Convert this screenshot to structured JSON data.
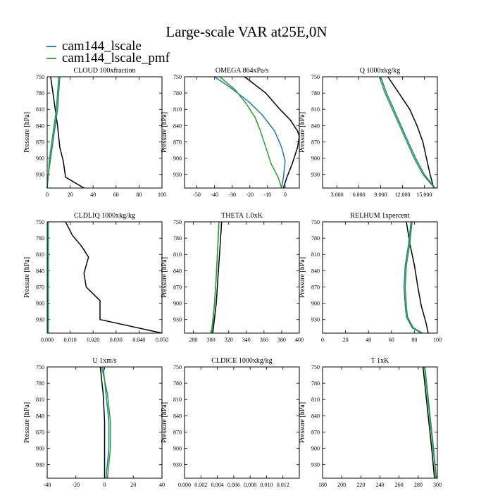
{
  "title": "Large-scale VAR at25E,0N",
  "legend": [
    {
      "name": "cam144_lscale",
      "color": "#1f77b4"
    },
    {
      "name": "cam144_lscale_pmf",
      "color": "#2ca02c"
    }
  ],
  "obs_color": "#000000",
  "ylabel": "Pressure [hPa]",
  "y_ticks": [
    "750",
    "780",
    "810",
    "840",
    "870",
    "900",
    "930"
  ],
  "chart_data": [
    {
      "type": "line",
      "title": "CLOUD  100xfraction",
      "ylabel": "Pressure [hPa]",
      "xlim": [
        0,
        100
      ],
      "ylim": [
        955,
        750
      ],
      "x_ticks": [
        {
          "v": 0,
          "t": "0"
        },
        {
          "v": 20,
          "t": "20"
        },
        {
          "v": 40,
          "t": "40"
        },
        {
          "v": 60,
          "t": "60"
        },
        {
          "v": 80,
          "t": "80"
        },
        {
          "v": 100,
          "t": "100"
        }
      ],
      "series": [
        {
          "name": "obs",
          "points": [
            [
              3,
              750
            ],
            [
              5,
              780
            ],
            [
              7,
              810
            ],
            [
              9,
              840
            ],
            [
              10,
              860
            ],
            [
              11,
              880
            ],
            [
              14,
              905
            ],
            [
              16,
              935
            ],
            [
              32,
              955
            ]
          ]
        },
        {
          "name": "cam144_lscale",
          "points": [
            [
              11,
              750
            ],
            [
              10,
              780
            ],
            [
              9,
              810
            ],
            [
              7,
              840
            ],
            [
              5,
              870
            ],
            [
              3,
              900
            ],
            [
              1,
              930
            ],
            [
              0,
              955
            ]
          ]
        },
        {
          "name": "cam144_lscale_pmf",
          "points": [
            [
              10,
              750
            ],
            [
              9,
              780
            ],
            [
              8,
              810
            ],
            [
              6,
              840
            ],
            [
              4,
              870
            ],
            [
              2,
              900
            ],
            [
              1,
              930
            ],
            [
              0,
              955
            ]
          ]
        }
      ]
    },
    {
      "type": "line",
      "title": "OMEGA  864xPa/s",
      "ylabel": "Pressure [hPa]",
      "xlim": [
        -57,
        8
      ],
      "ylim": [
        955,
        750
      ],
      "x_ticks": [
        {
          "v": -50,
          "t": "-50"
        },
        {
          "v": -40,
          "t": "-40"
        },
        {
          "v": -30,
          "t": "-30"
        },
        {
          "v": -20,
          "t": "-20"
        },
        {
          "v": -10,
          "t": "-10"
        },
        {
          "v": 0,
          "t": "0"
        }
      ],
      "series": [
        {
          "name": "obs",
          "points": [
            [
              -23,
              750
            ],
            [
              -11,
              780
            ],
            [
              -3,
              810
            ],
            [
              3,
              830
            ],
            [
              7,
              850
            ],
            [
              8,
              860
            ],
            [
              7,
              880
            ],
            [
              4,
              910
            ],
            [
              1,
              935
            ],
            [
              -1,
              955
            ]
          ]
        },
        {
          "name": "cam144_lscale",
          "points": [
            [
              -40,
              750
            ],
            [
              -31,
              770
            ],
            [
              -21,
              795
            ],
            [
              -13,
              820
            ],
            [
              -6,
              850
            ],
            [
              -2,
              880
            ],
            [
              0,
              905
            ],
            [
              -1,
              935
            ],
            [
              -2,
              955
            ]
          ]
        },
        {
          "name": "cam144_lscale_pmf",
          "points": [
            [
              -37,
              750
            ],
            [
              -28,
              775
            ],
            [
              -22,
              800
            ],
            [
              -17,
              825
            ],
            [
              -14,
              850
            ],
            [
              -11,
              880
            ],
            [
              -8,
              910
            ],
            [
              -4,
              935
            ],
            [
              -2,
              955
            ]
          ]
        }
      ]
    },
    {
      "type": "line",
      "title": "Q  1000xkg/kg",
      "ylabel": "Pressure [hPa]",
      "xlim": [
        1,
        16.8
      ],
      "ylim": [
        955,
        750
      ],
      "x_ticks": [
        {
          "v": 3,
          "t": "3.000"
        },
        {
          "v": 6,
          "t": "6.000"
        },
        {
          "v": 9,
          "t": "9.000"
        },
        {
          "v": 12,
          "t": "12.000"
        },
        {
          "v": 15,
          "t": "15.000"
        }
      ],
      "series": [
        {
          "name": "obs",
          "points": [
            [
              10,
              750
            ],
            [
              11.5,
              780
            ],
            [
              13,
              810
            ],
            [
              14,
              840
            ],
            [
              14.8,
              870
            ],
            [
              15.3,
              900
            ],
            [
              15.8,
              930
            ],
            [
              16.3,
              955
            ]
          ]
        },
        {
          "name": "cam144_lscale",
          "points": [
            [
              9,
              750
            ],
            [
              9.8,
              780
            ],
            [
              10.8,
              810
            ],
            [
              11.8,
              840
            ],
            [
              12.8,
              870
            ],
            [
              13.8,
              900
            ],
            [
              15,
              930
            ],
            [
              16.5,
              955
            ]
          ]
        },
        {
          "name": "cam144_lscale_pmf",
          "points": [
            [
              8.8,
              750
            ],
            [
              9.6,
              780
            ],
            [
              10.6,
              810
            ],
            [
              11.6,
              840
            ],
            [
              12.6,
              870
            ],
            [
              13.6,
              900
            ],
            [
              14.8,
              930
            ],
            [
              16.4,
              955
            ]
          ]
        }
      ]
    },
    {
      "type": "line",
      "title": "CLDLIQ  1000xkg/kg",
      "ylabel": "Pressure [hPa]",
      "xlim": [
        0,
        0.05
      ],
      "ylim": [
        955,
        750
      ],
      "x_ticks": [
        {
          "v": 0,
          "t": "0.000"
        },
        {
          "v": 0.01,
          "t": "0.010"
        },
        {
          "v": 0.02,
          "t": "0.020"
        },
        {
          "v": 0.03,
          "t": "0.030"
        },
        {
          "v": 0.04,
          "t": "0.040"
        },
        {
          "v": 0.05,
          "t": "0.050"
        }
      ],
      "series": [
        {
          "name": "obs",
          "points": [
            [
              0.008,
              750
            ],
            [
              0.011,
              775
            ],
            [
              0.015,
              795
            ],
            [
              0.018,
              815
            ],
            [
              0.017,
              830
            ],
            [
              0.016,
              845
            ],
            [
              0.017,
              870
            ],
            [
              0.023,
              895
            ],
            [
              0.023,
              930
            ],
            [
              0.05,
              955
            ]
          ]
        },
        {
          "name": "cam144_lscale",
          "points": [
            [
              0.0005,
              750
            ],
            [
              0.0005,
              850
            ],
            [
              0.0005,
              940
            ],
            [
              0.0005,
              955
            ]
          ]
        },
        {
          "name": "cam144_lscale_pmf",
          "points": [
            [
              0.0003,
              750
            ],
            [
              0.0003,
              850
            ],
            [
              0.0003,
              940
            ],
            [
              0.0003,
              955
            ]
          ]
        }
      ]
    },
    {
      "type": "line",
      "title": "THETA  1.0xK",
      "ylabel": "Pressure [hPa]",
      "xlim": [
        270,
        400
      ],
      "ylim": [
        955,
        750
      ],
      "x_ticks": [
        {
          "v": 280,
          "t": "280"
        },
        {
          "v": 300,
          "t": "300"
        },
        {
          "v": 320,
          "t": "320"
        },
        {
          "v": 340,
          "t": "340"
        },
        {
          "v": 360,
          "t": "360"
        },
        {
          "v": 380,
          "t": "380"
        },
        {
          "v": 400,
          "t": "400"
        }
      ],
      "series": [
        {
          "name": "obs",
          "points": [
            [
              312,
              750
            ],
            [
              310,
              800
            ],
            [
              308,
              850
            ],
            [
              306,
              900
            ],
            [
              302,
              955
            ]
          ]
        },
        {
          "name": "cam144_lscale",
          "points": [
            [
              309,
              750
            ],
            [
              307.5,
              800
            ],
            [
              306,
              850
            ],
            [
              304,
              900
            ],
            [
              301,
              955
            ]
          ]
        },
        {
          "name": "cam144_lscale_pmf",
          "points": [
            [
              309,
              750
            ],
            [
              307.5,
              800
            ],
            [
              306,
              850
            ],
            [
              304,
              900
            ],
            [
              300.5,
              955
            ]
          ]
        }
      ]
    },
    {
      "type": "line",
      "title": "RELHUM  1xpercent",
      "ylabel": "Pressure [hPa]",
      "xlim": [
        0,
        100
      ],
      "ylim": [
        955,
        750
      ],
      "x_ticks": [
        {
          "v": 0,
          "t": "0"
        },
        {
          "v": 20,
          "t": "20"
        },
        {
          "v": 40,
          "t": "40"
        },
        {
          "v": 60,
          "t": "60"
        },
        {
          "v": 80,
          "t": "80"
        },
        {
          "v": 100,
          "t": "100"
        }
      ],
      "series": [
        {
          "name": "obs",
          "points": [
            [
              73,
              750
            ],
            [
              76,
              790
            ],
            [
              80,
              830
            ],
            [
              83,
              870
            ],
            [
              86,
              905
            ],
            [
              90,
              935
            ],
            [
              92,
              955
            ]
          ]
        },
        {
          "name": "cam144_lscale",
          "points": [
            [
              77,
              750
            ],
            [
              75,
              790
            ],
            [
              72,
              830
            ],
            [
              71,
              870
            ],
            [
              72,
              905
            ],
            [
              73,
              925
            ],
            [
              78,
              945
            ],
            [
              86,
              955
            ]
          ]
        },
        {
          "name": "cam144_lscale_pmf",
          "points": [
            [
              78,
              750
            ],
            [
              76,
              790
            ],
            [
              73,
              830
            ],
            [
              72,
              870
            ],
            [
              73,
              905
            ],
            [
              74,
              925
            ],
            [
              79,
              945
            ],
            [
              87,
              955
            ]
          ]
        }
      ]
    },
    {
      "type": "line",
      "title": "U  1xm/s",
      "ylabel": "Pressure [hPa]",
      "xlim": [
        -40,
        40
      ],
      "ylim": [
        955,
        750
      ],
      "x_ticks": [
        {
          "v": -40,
          "t": "-40"
        },
        {
          "v": -20,
          "t": "-20"
        },
        {
          "v": 0,
          "t": "0"
        },
        {
          "v": 20,
          "t": "20"
        },
        {
          "v": 40,
          "t": "40"
        }
      ],
      "series": [
        {
          "name": "obs",
          "points": [
            [
              -3,
              750
            ],
            [
              -1,
              800
            ],
            [
              0,
              850
            ],
            [
              0,
              900
            ],
            [
              0,
              955
            ]
          ]
        },
        {
          "name": "cam144_lscale",
          "points": [
            [
              -1,
              750
            ],
            [
              1,
              800
            ],
            [
              3,
              850
            ],
            [
              3,
              900
            ],
            [
              1,
              955
            ]
          ]
        },
        {
          "name": "cam144_lscale_pmf",
          "points": [
            [
              -2,
              750
            ],
            [
              2,
              800
            ],
            [
              4,
              850
            ],
            [
              4,
              900
            ],
            [
              2,
              955
            ]
          ]
        }
      ]
    },
    {
      "type": "line",
      "title": "CLDICE  1000xkg/kg",
      "ylabel": "Pressure [hPa]",
      "xlim": [
        0,
        0.014
      ],
      "ylim": [
        955,
        750
      ],
      "x_ticks": [
        {
          "v": 0,
          "t": "0.000"
        },
        {
          "v": 0.002,
          "t": "0.002"
        },
        {
          "v": 0.004,
          "t": "0.004"
        },
        {
          "v": 0.006,
          "t": "0.006"
        },
        {
          "v": 0.008,
          "t": "0.008"
        },
        {
          "v": 0.01,
          "t": "0.010"
        },
        {
          "v": 0.012,
          "t": "0.012"
        }
      ],
      "series": []
    },
    {
      "type": "line",
      "title": "T  1xK",
      "ylabel": "Pressure [hPa]",
      "xlim": [
        180,
        300
      ],
      "ylim": [
        955,
        750
      ],
      "x_ticks": [
        {
          "v": 180,
          "t": "180"
        },
        {
          "v": 200,
          "t": "200"
        },
        {
          "v": 220,
          "t": "220"
        },
        {
          "v": 240,
          "t": "240"
        },
        {
          "v": 260,
          "t": "260"
        },
        {
          "v": 280,
          "t": "280"
        },
        {
          "v": 300,
          "t": "300"
        }
      ],
      "series": [
        {
          "name": "obs",
          "points": [
            [
              285,
              750
            ],
            [
              288,
              800
            ],
            [
              291,
              850
            ],
            [
              294,
              900
            ],
            [
              297,
              955
            ]
          ]
        },
        {
          "name": "cam144_lscale",
          "points": [
            [
              287,
              750
            ],
            [
              290,
              800
            ],
            [
              293,
              850
            ],
            [
              296,
              900
            ],
            [
              299,
              955
            ]
          ]
        },
        {
          "name": "cam144_lscale_pmf",
          "points": [
            [
              286.5,
              750
            ],
            [
              289.5,
              800
            ],
            [
              292.5,
              850
            ],
            [
              295.5,
              900
            ],
            [
              298.5,
              955
            ]
          ]
        }
      ]
    }
  ]
}
